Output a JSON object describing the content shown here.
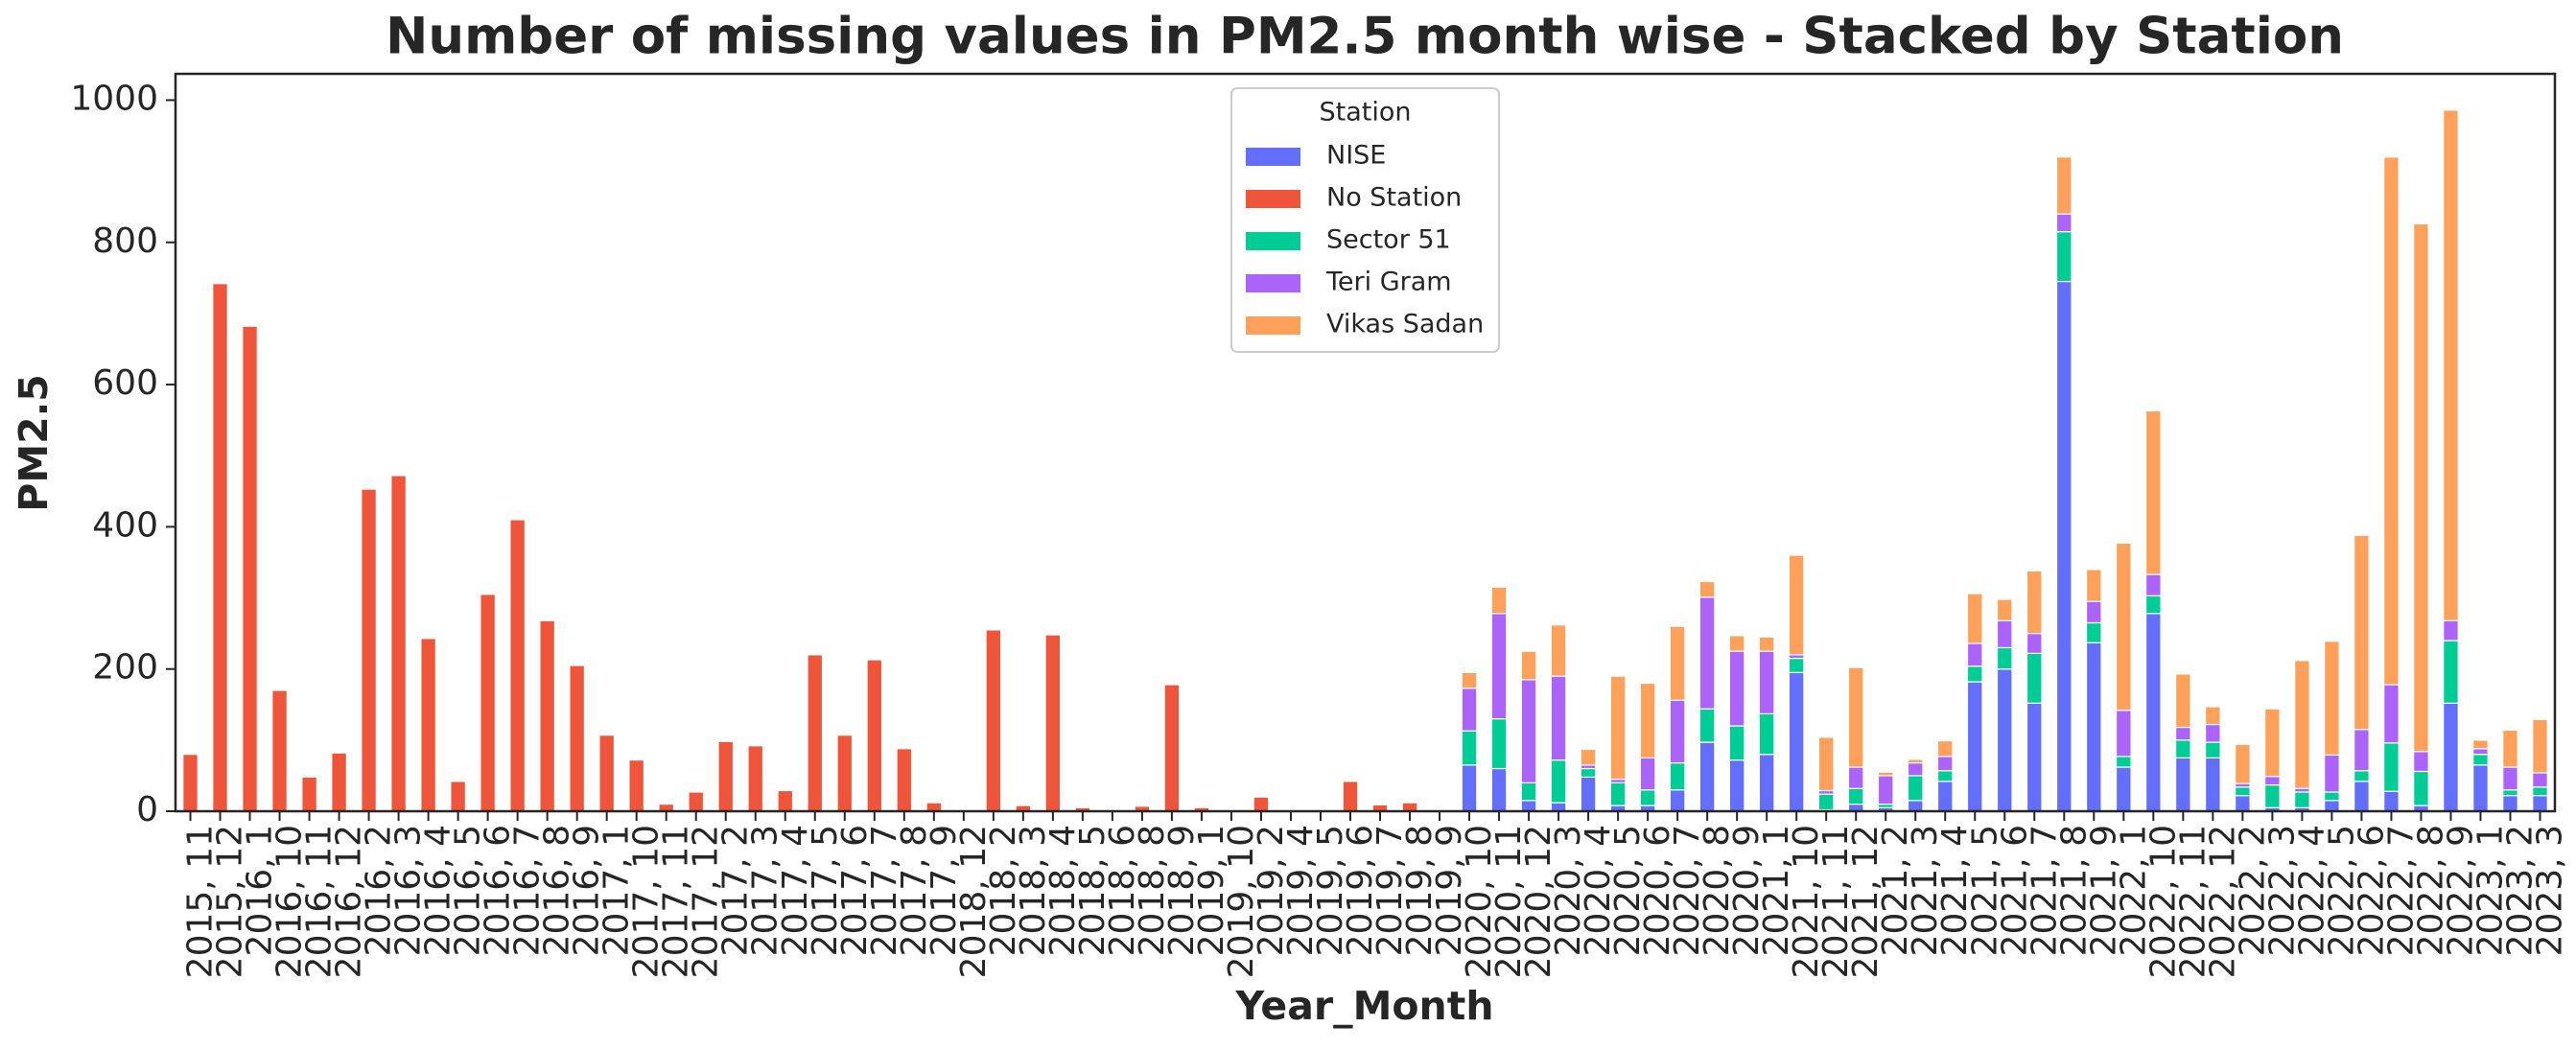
{
  "chart_data": {
    "type": "stacked_bar",
    "title": "Number of missing values in PM2.5 month wise - Stacked by Station",
    "x_label": "Year_Month",
    "y_label": "PM2.5",
    "legend_title": "Station",
    "legend_loc": "upper center",
    "grid": false,
    "ylim": [
      0,
      1037
    ],
    "yticks": [
      0,
      200,
      400,
      600,
      800,
      1000
    ],
    "categories": [
      "2015, 11",
      "2015, 12",
      "2016, 1",
      "2016, 10",
      "2016, 11",
      "2016, 12",
      "2016, 2",
      "2016, 3",
      "2016, 4",
      "2016, 5",
      "2016, 6",
      "2016, 7",
      "2016, 8",
      "2016, 9",
      "2017, 1",
      "2017, 10",
      "2017, 11",
      "2017, 12",
      "2017, 2",
      "2017, 3",
      "2017, 4",
      "2017, 5",
      "2017, 6",
      "2017, 7",
      "2017, 8",
      "2017, 9",
      "2018, 12",
      "2018, 2",
      "2018, 3",
      "2018, 4",
      "2018, 5",
      "2018, 6",
      "2018, 8",
      "2018, 9",
      "2019, 1",
      "2019, 10",
      "2019, 2",
      "2019, 4",
      "2019, 5",
      "2019, 6",
      "2019, 7",
      "2019, 8",
      "2019, 9",
      "2020, 10",
      "2020, 11",
      "2020, 12",
      "2020, 3",
      "2020, 4",
      "2020, 5",
      "2020, 6",
      "2020, 7",
      "2020, 8",
      "2020, 9",
      "2021, 1",
      "2021, 10",
      "2021, 11",
      "2021, 12",
      "2021, 2",
      "2021, 3",
      "2021, 4",
      "2021, 5",
      "2021, 6",
      "2021, 7",
      "2021, 8",
      "2021, 9",
      "2022, 1",
      "2022, 10",
      "2022, 11",
      "2022, 12",
      "2022, 2",
      "2022, 3",
      "2022, 4",
      "2022, 5",
      "2022, 6",
      "2022, 7",
      "2022, 8",
      "2022, 9",
      "2023, 1",
      "2023, 2",
      "2023, 3"
    ],
    "series": [
      {
        "name": "NISE",
        "color": "#636efa",
        "values": [
          0,
          0,
          0,
          0,
          0,
          0,
          0,
          0,
          0,
          0,
          0,
          0,
          0,
          0,
          0,
          0,
          0,
          0,
          0,
          0,
          0,
          0,
          0,
          0,
          0,
          0,
          0,
          0,
          0,
          0,
          0,
          0,
          0,
          0,
          0,
          0,
          0,
          0,
          0,
          0,
          0,
          0,
          0,
          65,
          60,
          15,
          12,
          48,
          8,
          8,
          30,
          97,
          72,
          80,
          195,
          2,
          10,
          5,
          15,
          42,
          182,
          200,
          152,
          745,
          237,
          62,
          278,
          75,
          75,
          22,
          5,
          5,
          15,
          42,
          28,
          8,
          152,
          65,
          22,
          22
        ]
      },
      {
        "name": "No Station",
        "color": "#ef553b",
        "values": [
          80,
          742,
          682,
          170,
          48,
          82,
          453,
          472,
          243,
          42,
          305,
          410,
          268,
          205,
          107,
          72,
          10,
          27,
          98,
          92,
          29,
          220,
          107,
          213,
          88,
          12,
          1,
          255,
          8,
          248,
          5,
          1,
          7,
          178,
          5,
          2,
          20,
          1,
          1,
          42,
          9,
          12,
          1,
          0,
          0,
          0,
          0,
          0,
          0,
          0,
          0,
          0,
          0,
          0,
          0,
          0,
          0,
          0,
          0,
          0,
          0,
          0,
          0,
          0,
          0,
          0,
          0,
          0,
          0,
          0,
          0,
          0,
          0,
          0,
          0,
          0,
          0,
          0,
          0,
          0
        ]
      },
      {
        "name": "Sector 51",
        "color": "#00cc96",
        "values": [
          0,
          0,
          0,
          0,
          0,
          0,
          0,
          0,
          0,
          0,
          0,
          0,
          0,
          0,
          0,
          0,
          0,
          0,
          0,
          0,
          0,
          0,
          0,
          0,
          0,
          0,
          0,
          0,
          0,
          0,
          0,
          0,
          0,
          0,
          0,
          0,
          0,
          0,
          0,
          0,
          0,
          0,
          0,
          48,
          70,
          25,
          60,
          12,
          32,
          22,
          38,
          47,
          48,
          57,
          20,
          22,
          22,
          5,
          35,
          15,
          22,
          30,
          70,
          70,
          28,
          15,
          25,
          25,
          22,
          12,
          32,
          22,
          12,
          15,
          68,
          48,
          88,
          15,
          8,
          12
        ]
      },
      {
        "name": "Teri Gram",
        "color": "#ab63fa",
        "values": [
          0,
          0,
          0,
          0,
          0,
          0,
          0,
          0,
          0,
          0,
          0,
          0,
          0,
          0,
          0,
          0,
          0,
          0,
          0,
          0,
          0,
          0,
          0,
          0,
          0,
          0,
          0,
          0,
          0,
          0,
          0,
          0,
          0,
          0,
          0,
          0,
          0,
          0,
          0,
          0,
          0,
          0,
          0,
          60,
          148,
          145,
          118,
          5,
          5,
          45,
          88,
          157,
          105,
          88,
          5,
          5,
          30,
          40,
          18,
          20,
          32,
          38,
          28,
          25,
          30,
          65,
          30,
          18,
          25,
          5,
          12,
          5,
          52,
          58,
          82,
          28,
          28,
          8,
          32,
          20
        ]
      },
      {
        "name": "Vikas Sadan",
        "color": "#ffa15a",
        "values": [
          0,
          0,
          0,
          0,
          0,
          0,
          0,
          0,
          0,
          0,
          0,
          0,
          0,
          0,
          0,
          0,
          0,
          0,
          0,
          0,
          0,
          0,
          0,
          0,
          0,
          0,
          0,
          0,
          0,
          0,
          0,
          0,
          0,
          0,
          0,
          0,
          0,
          0,
          0,
          0,
          0,
          0,
          0,
          22,
          37,
          40,
          72,
          22,
          145,
          105,
          104,
          22,
          22,
          20,
          140,
          75,
          140,
          5,
          5,
          22,
          70,
          30,
          88,
          80,
          45,
          235,
          230,
          75,
          25,
          55,
          95,
          180,
          160,
          273,
          742,
          742,
          718,
          12,
          52,
          75
        ]
      }
    ]
  }
}
